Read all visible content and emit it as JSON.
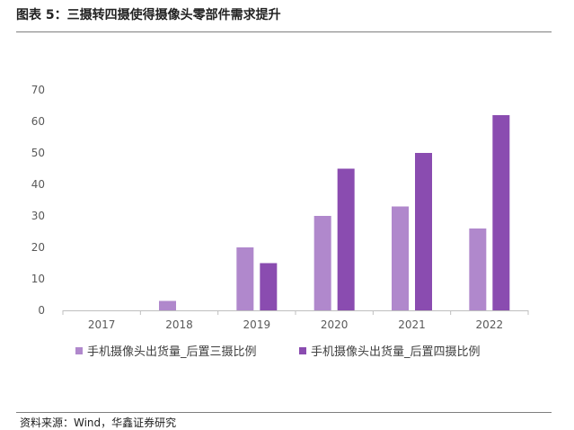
{
  "figure": {
    "title": "图表 5：三摄转四摄使得摄像头零部件需求提升",
    "source": "资料来源：Wind，华鑫证券研究"
  },
  "colors": {
    "series1": "#b088cc",
    "series2": "#8a4cb0",
    "axis": "#bfbfbf",
    "rule": "#7f7f7f"
  },
  "chart_data": {
    "type": "bar",
    "categories": [
      "2017",
      "2018",
      "2019",
      "2020",
      "2021",
      "2022"
    ],
    "series": [
      {
        "name": "手机摄像头出货量_后置三摄比例",
        "values": [
          0,
          3,
          20,
          30,
          33,
          26
        ]
      },
      {
        "name": "手机摄像头出货量_后置四摄比例",
        "values": [
          0,
          0,
          15,
          45,
          50,
          62
        ]
      }
    ],
    "yticks": [
      "0",
      "10",
      "20",
      "30",
      "40",
      "50",
      "60",
      "70"
    ],
    "ylim": [
      0,
      70
    ],
    "grid": false,
    "legend_position": "bottom"
  }
}
